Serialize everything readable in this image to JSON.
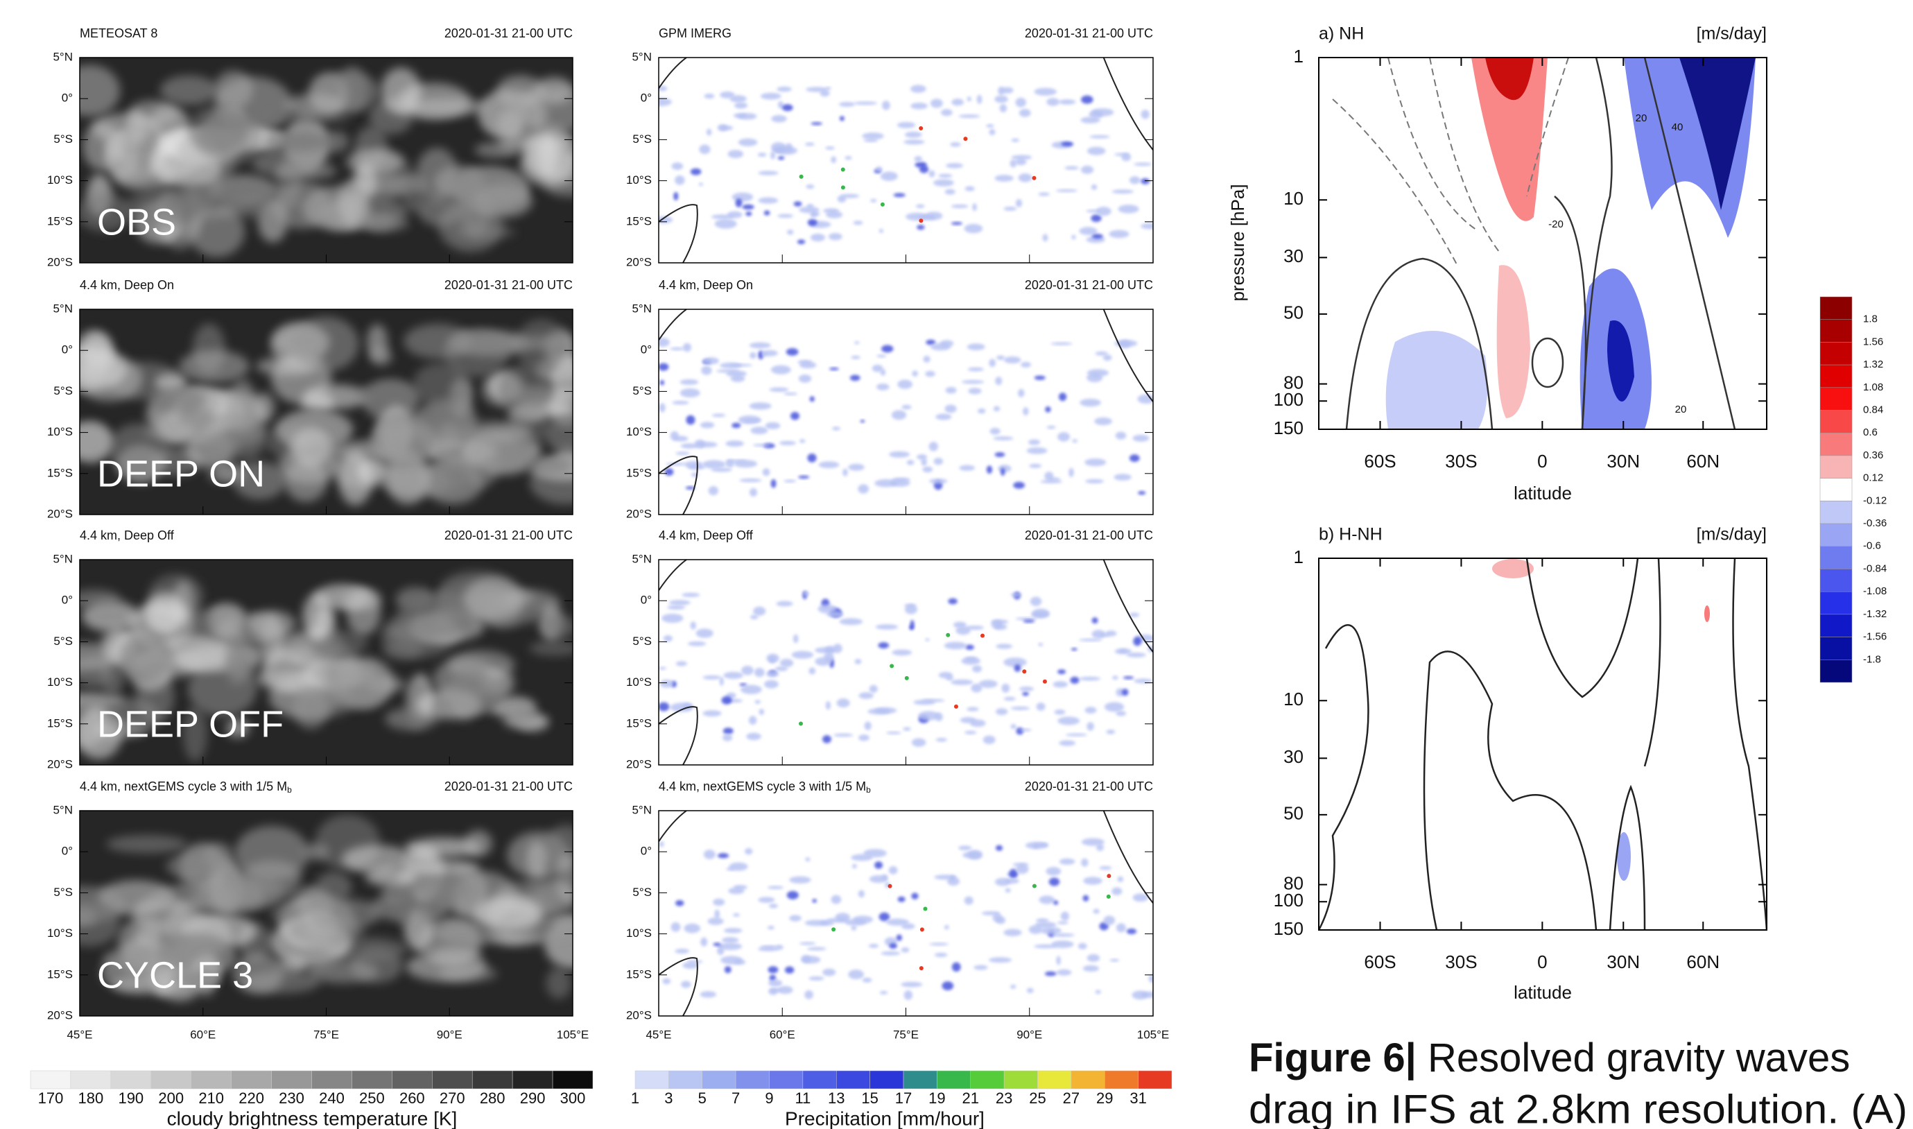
{
  "satellite_panels": [
    {
      "title": "METEOSAT 8",
      "time": "2020-01-31 21-00 UTC",
      "label": "OBS"
    },
    {
      "title": "4.4 km, Deep On",
      "time": "2020-01-31 21-00 UTC",
      "label": "DEEP ON"
    },
    {
      "title": "4.4 km, Deep Off",
      "time": "2020-01-31 21-00 UTC",
      "label": "DEEP OFF"
    },
    {
      "title": "4.4 km, nextGEMS cycle 3 with 1/5 M",
      "subscript": "b",
      "time": "2020-01-31 21-00 UTC",
      "label": "CYCLE 3"
    }
  ],
  "precip_panels": [
    {
      "title": "GPM IMERG",
      "time": "2020-01-31 21-00 UTC"
    },
    {
      "title": "4.4 km, Deep On",
      "time": "2020-01-31 21-00 UTC"
    },
    {
      "title": "4.4 km, Deep Off",
      "time": "2020-01-31 21-00 UTC"
    },
    {
      "title": "4.4 km, nextGEMS cycle 3 with 1/5 M",
      "subscript": "b",
      "time": "2020-01-31 21-00 UTC"
    }
  ],
  "lat_ticks": [
    "5°N",
    "0°",
    "5°S",
    "10°S",
    "15°S",
    "20°S"
  ],
  "lon_ticks": [
    "45°E",
    "60°E",
    "75°E",
    "90°E",
    "105°E"
  ],
  "temp_colorbar": {
    "ticks": [
      "170",
      "180",
      "190",
      "200",
      "210",
      "220",
      "230",
      "240",
      "250",
      "260",
      "270",
      "280",
      "290",
      "300"
    ],
    "colors": [
      "#f4f4f4",
      "#e6e6e6",
      "#d8d8d8",
      "#c8c8c8",
      "#b8b8b8",
      "#a8a8a8",
      "#989898",
      "#868686",
      "#747474",
      "#626262",
      "#4e4e4e",
      "#3a3a3a",
      "#242424",
      "#0c0c0c"
    ],
    "label": "cloudy brightness temperature [K]"
  },
  "precip_colorbar": {
    "ticks": [
      "1",
      "3",
      "5",
      "7",
      "9",
      "11",
      "13",
      "15",
      "17",
      "19",
      "21",
      "23",
      "25",
      "27",
      "29",
      "31"
    ],
    "colors": [
      "#d4dcf8",
      "#b9c6f4",
      "#9daef0",
      "#8191ec",
      "#6a78ea",
      "#4e5fe6",
      "#3b49e0",
      "#2a36d8",
      "#2e8c8c",
      "#38b84a",
      "#56cc3a",
      "#9edc3a",
      "#e8e83a",
      "#f2b432",
      "#ee7a2a",
      "#e63a22"
    ],
    "label": "Precipitation [mm/hour]"
  },
  "gw_panels": [
    {
      "title": "a) NH",
      "units": "[m/s/day]",
      "contour_labels": [
        "20",
        "40",
        "-20",
        "20"
      ]
    },
    {
      "title": "b) H-NH",
      "units": "[m/s/day]"
    }
  ],
  "pressure_ticks": [
    "1",
    "10",
    "30",
    "50",
    "80",
    "100",
    "150"
  ],
  "latitude_ticks": [
    "60S",
    "30S",
    "0",
    "30N",
    "60N"
  ],
  "y_label": "pressure [hPa]",
  "x_label": "latitude",
  "drag_colorbar": {
    "ticks": [
      "1.8",
      "1.56",
      "1.32",
      "1.08",
      "0.84",
      "0.6",
      "0.36",
      "0.12",
      "-0.12",
      "-0.36",
      "-0.6",
      "-0.84",
      "-1.08",
      "-1.32",
      "-1.56",
      "-1.8"
    ],
    "colors": [
      "#8c0000",
      "#a80000",
      "#c40000",
      "#e00000",
      "#f81010",
      "#f84848",
      "#f87a7a",
      "#f8b4b4",
      "#ffffff",
      "#c0c8f8",
      "#9aa6f4",
      "#6e7cf0",
      "#4a56ee",
      "#2630e8",
      "#1018c8",
      "#0810a4",
      "#04087a"
    ]
  },
  "caption": {
    "label": "Figure 6|",
    "lines": [
      " Resolved gravity waves",
      "drag in IFS at 2.8km resolution. (A)"
    ]
  }
}
